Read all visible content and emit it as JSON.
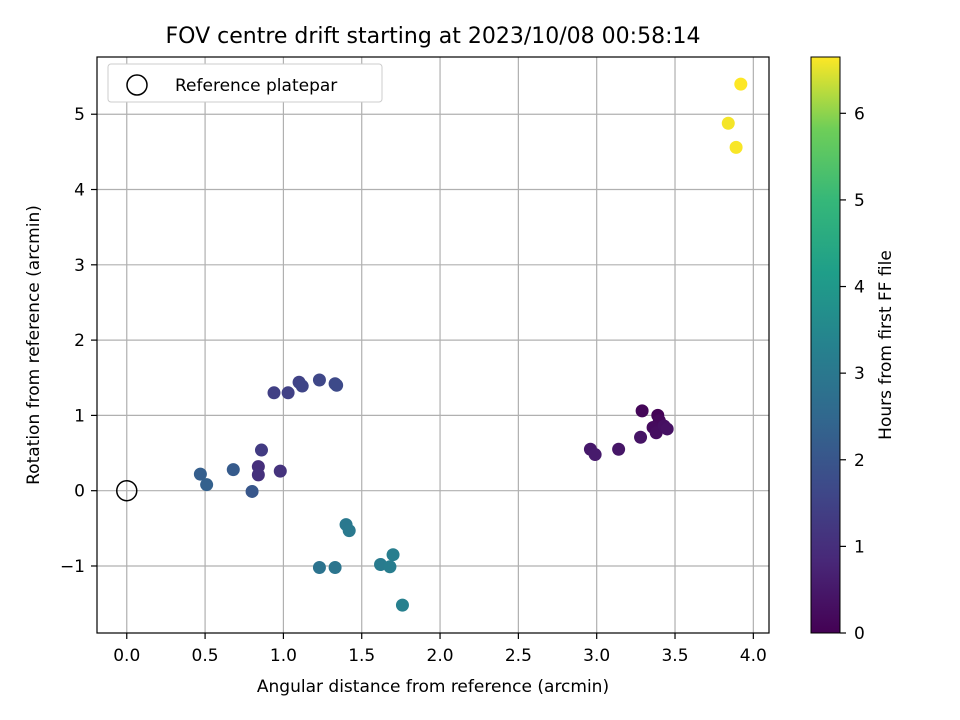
{
  "chart_data": {
    "type": "scatter",
    "title": "FOV centre drift starting at 2023/10/08 00:58:14",
    "xlabel": "Angular distance from reference (arcmin)",
    "ylabel": "Rotation from reference (arcmin)",
    "xlim": [
      -0.19,
      4.1
    ],
    "ylim": [
      -1.89,
      5.76
    ],
    "xticks": [
      0.0,
      0.5,
      1.0,
      1.5,
      2.0,
      2.5,
      3.0,
      3.5,
      4.0
    ],
    "xtick_labels": [
      "0.0",
      "0.5",
      "1.0",
      "1.5",
      "2.0",
      "2.5",
      "3.0",
      "3.5",
      "4.0"
    ],
    "yticks": [
      -1,
      0,
      1,
      2,
      3,
      4,
      5
    ],
    "ytick_labels": [
      "−1",
      "0",
      "1",
      "2",
      "3",
      "4",
      "5"
    ],
    "grid": true,
    "legend": {
      "position": "top-left",
      "entries": [
        "Reference platepar"
      ]
    },
    "reference_point": {
      "x": 0.0,
      "y": 0.0
    },
    "colorbar": {
      "label": "Hours from first FF file",
      "colormap": "viridis",
      "range": [
        0,
        6.65
      ],
      "ticks": [
        0,
        1,
        2,
        3,
        4,
        5,
        6
      ],
      "tick_labels": [
        "0",
        "1",
        "2",
        "3",
        "4",
        "5",
        "6"
      ]
    },
    "points": [
      {
        "x": 3.39,
        "y": 1.0,
        "hours": 0.05
      },
      {
        "x": 3.29,
        "y": 1.06,
        "hours": 0.1
      },
      {
        "x": 3.4,
        "y": 0.93,
        "hours": 0.15
      },
      {
        "x": 3.36,
        "y": 0.84,
        "hours": 0.2
      },
      {
        "x": 3.38,
        "y": 0.77,
        "hours": 0.25
      },
      {
        "x": 3.43,
        "y": 0.86,
        "hours": 0.3
      },
      {
        "x": 3.45,
        "y": 0.82,
        "hours": 0.35
      },
      {
        "x": 3.28,
        "y": 0.71,
        "hours": 0.4
      },
      {
        "x": 3.14,
        "y": 0.55,
        "hours": 0.45
      },
      {
        "x": 2.96,
        "y": 0.55,
        "hours": 0.5
      },
      {
        "x": 2.99,
        "y": 0.48,
        "hours": 0.55
      },
      {
        "x": 0.84,
        "y": 0.32,
        "hours": 1.0
      },
      {
        "x": 0.84,
        "y": 0.21,
        "hours": 1.05
      },
      {
        "x": 0.98,
        "y": 0.26,
        "hours": 1.1
      },
      {
        "x": 0.86,
        "y": 0.54,
        "hours": 1.3
      },
      {
        "x": 0.94,
        "y": 1.3,
        "hours": 1.4
      },
      {
        "x": 1.03,
        "y": 1.3,
        "hours": 1.45
      },
      {
        "x": 1.1,
        "y": 1.44,
        "hours": 1.5
      },
      {
        "x": 1.12,
        "y": 1.39,
        "hours": 1.55
      },
      {
        "x": 1.23,
        "y": 1.47,
        "hours": 1.6
      },
      {
        "x": 1.33,
        "y": 1.42,
        "hours": 1.65
      },
      {
        "x": 1.34,
        "y": 1.4,
        "hours": 1.7
      },
      {
        "x": 0.8,
        "y": -0.01,
        "hours": 2.05
      },
      {
        "x": 0.68,
        "y": 0.28,
        "hours": 2.15
      },
      {
        "x": 0.47,
        "y": 0.22,
        "hours": 2.25
      },
      {
        "x": 0.51,
        "y": 0.08,
        "hours": 2.3
      },
      {
        "x": 1.23,
        "y": -1.02,
        "hours": 2.85
      },
      {
        "x": 1.33,
        "y": -1.02,
        "hours": 2.9
      },
      {
        "x": 1.4,
        "y": -0.45,
        "hours": 3.0
      },
      {
        "x": 1.42,
        "y": -0.53,
        "hours": 3.05
      },
      {
        "x": 1.62,
        "y": -0.98,
        "hours": 3.1
      },
      {
        "x": 1.68,
        "y": -1.01,
        "hours": 3.15
      },
      {
        "x": 1.7,
        "y": -0.85,
        "hours": 3.2
      },
      {
        "x": 1.76,
        "y": -1.52,
        "hours": 3.25
      },
      {
        "x": 3.84,
        "y": 4.88,
        "hours": 6.6
      },
      {
        "x": 3.89,
        "y": 4.56,
        "hours": 6.62
      },
      {
        "x": 3.92,
        "y": 5.4,
        "hours": 6.65
      }
    ]
  }
}
